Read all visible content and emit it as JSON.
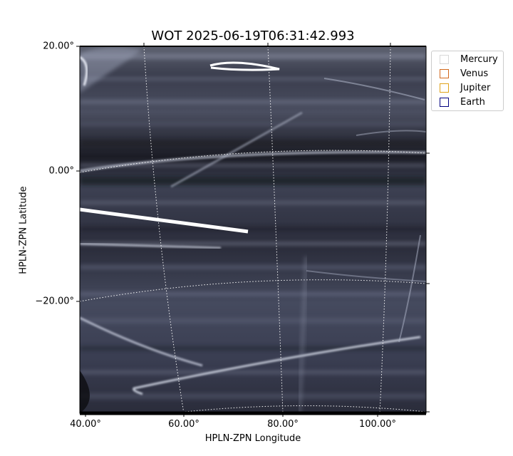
{
  "title": "WOT 2025-06-19T06:31:42.993",
  "axes": {
    "xlabel": "HPLN-ZPN Longitude",
    "ylabel": "HPLN-ZPN Latitude",
    "x_ticks": [
      "40.00°",
      "60.00°",
      "80.00°",
      "100.00°"
    ],
    "y_ticks": [
      "20.00°",
      "0.00°",
      "−20.00°"
    ]
  },
  "legend": {
    "items": [
      {
        "label": "Mercury",
        "color": "#d8d8d8"
      },
      {
        "label": "Venus",
        "color": "#d2691e"
      },
      {
        "label": "Jupiter",
        "color": "#e0a31a"
      },
      {
        "label": "Earth",
        "color": "#000080"
      }
    ]
  },
  "image": {
    "background_color": "#2f3242",
    "streak_color": "#c9cfe0"
  }
}
